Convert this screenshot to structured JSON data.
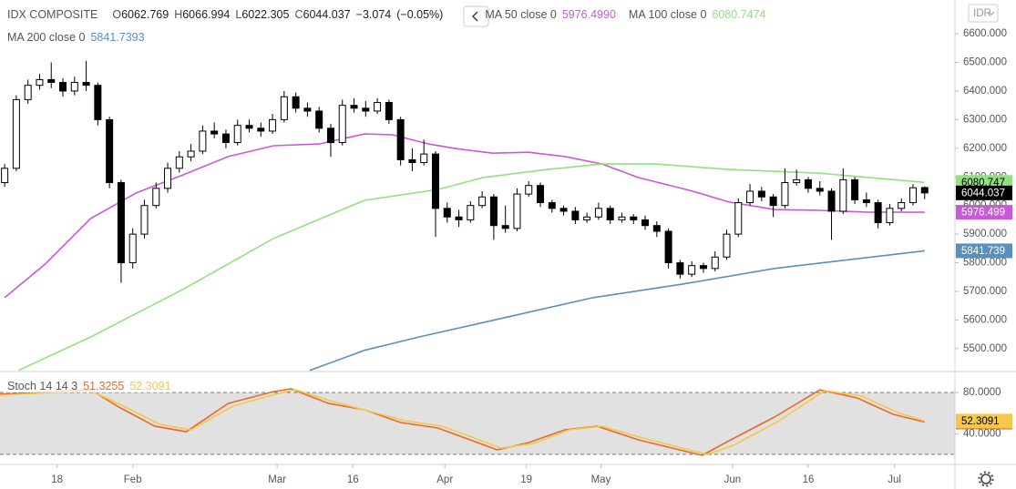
{
  "chart_data": [
    {
      "type": "candlestick",
      "title": "IDX COMPOSITE",
      "currency": "IDR",
      "ohlc_labels": [
        "O",
        "H",
        "L",
        "C"
      ],
      "change": "−3.074",
      "change_pct": "(−0.05%)",
      "up_color": "#ffffff",
      "down_color": "#000000",
      "open": [
        6080,
        6130,
        6370,
        6420,
        6440,
        6430,
        6400,
        6430,
        6420,
        6300,
        6080,
        5800,
        5900,
        6000,
        6060,
        6130,
        6170,
        6190,
        6260,
        6250,
        6220,
        6280,
        6270,
        6260,
        6300,
        6380,
        6340,
        6330,
        6270,
        6220,
        6350,
        6340,
        6330,
        6360,
        6300,
        6160,
        6150,
        6180,
        5990,
        5960,
        5950,
        6000,
        6030,
        5930,
        5920,
        6040,
        6070,
        6010,
        5990,
        5980,
        5950,
        5960,
        5990,
        5950,
        5960,
        5950,
        5930,
        5910,
        5800,
        5760,
        5790,
        5780,
        5820,
        5900,
        6010,
        6050,
        6030,
        6000,
        6080,
        6090,
        6060,
        6050,
        5980,
        6090,
        6020,
        6010,
        5940,
        5990,
        6010,
        6062.769
      ],
      "high": [
        6145,
        6385,
        6440,
        6460,
        6500,
        6445,
        6450,
        6505,
        6430,
        6310,
        6090,
        5920,
        6020,
        6080,
        6150,
        6190,
        6215,
        6280,
        6290,
        6265,
        6300,
        6300,
        6290,
        6320,
        6400,
        6395,
        6360,
        6345,
        6285,
        6370,
        6375,
        6365,
        6375,
        6370,
        6310,
        6200,
        6230,
        6190,
        6010,
        5985,
        6015,
        6050,
        6040,
        6000,
        6060,
        6085,
        6080,
        6020,
        6000,
        5995,
        5975,
        6010,
        6000,
        5975,
        5970,
        5965,
        5945,
        5920,
        5810,
        5805,
        5800,
        5840,
        5915,
        6025,
        6075,
        6065,
        6040,
        6130,
        6125,
        6100,
        6085,
        6060,
        6130,
        6100,
        6045,
        6020,
        6005,
        6025,
        6075,
        6066.994
      ],
      "low": [
        6065,
        6120,
        6355,
        6405,
        6410,
        6380,
        6385,
        6400,
        6280,
        6060,
        5730,
        5780,
        5885,
        5990,
        6045,
        6115,
        6155,
        6180,
        6235,
        6200,
        6210,
        6255,
        6240,
        6250,
        6290,
        6325,
        6310,
        6255,
        6170,
        6210,
        6325,
        6310,
        6320,
        6285,
        6140,
        6120,
        6140,
        5890,
        5940,
        5925,
        5940,
        5990,
        5880,
        5905,
        5910,
        6030,
        5995,
        5975,
        5965,
        5935,
        5940,
        5950,
        5935,
        5940,
        5935,
        5915,
        5890,
        5780,
        5745,
        5750,
        5765,
        5770,
        5810,
        5890,
        6000,
        6015,
        5960,
        5990,
        6070,
        6045,
        6035,
        5880,
        5970,
        6005,
        5995,
        5920,
        5930,
        5980,
        6000,
        6022.305
      ],
      "close": [
        6130,
        6370,
        6420,
        6440,
        6430,
        6400,
        6430,
        6420,
        6300,
        6080,
        5800,
        5900,
        6000,
        6060,
        6130,
        6170,
        6190,
        6260,
        6250,
        6220,
        6280,
        6270,
        6260,
        6300,
        6380,
        6340,
        6330,
        6270,
        6220,
        6350,
        6340,
        6330,
        6360,
        6300,
        6160,
        6150,
        6180,
        5990,
        5960,
        5950,
        6000,
        6030,
        5930,
        5920,
        6040,
        6070,
        6010,
        5990,
        5980,
        5950,
        5960,
        5990,
        5950,
        5960,
        5950,
        5930,
        5910,
        5800,
        5760,
        5790,
        5780,
        5820,
        5900,
        6010,
        6050,
        6030,
        6000,
        6080,
        6090,
        6060,
        6050,
        5980,
        6090,
        6020,
        6010,
        5940,
        5990,
        6010,
        6062,
        6044.037
      ],
      "ylim": [
        5420,
        6718
      ],
      "yticks": [
        {
          "value": 5500,
          "label": "5500.000"
        },
        {
          "value": 5600,
          "label": "5600.000"
        },
        {
          "value": 5700,
          "label": "5700.000"
        },
        {
          "value": 5800,
          "label": "5800.000"
        },
        {
          "value": 5900,
          "label": "5900.000"
        },
        {
          "value": 6000,
          "label": "6000.000"
        },
        {
          "value": 6100,
          "label": "6100.000"
        },
        {
          "value": 6200,
          "label": "6200.000"
        },
        {
          "value": 6300,
          "label": "6300.000"
        },
        {
          "value": 6400,
          "label": "6400.000"
        },
        {
          "value": 6500,
          "label": "6500.000"
        },
        {
          "value": 6600,
          "label": "6600.000"
        }
      ],
      "xlim": [
        -0.4,
        81.6
      ],
      "xticks": [
        {
          "value": 4.5,
          "label": "18"
        },
        {
          "value": 11,
          "label": "Feb"
        },
        {
          "value": 23.4,
          "label": "Mar"
        },
        {
          "value": 29.9,
          "label": "16"
        },
        {
          "value": 37.8,
          "label": "Apr"
        },
        {
          "value": 44.8,
          "label": "19"
        },
        {
          "value": 51.2,
          "label": "May"
        },
        {
          "value": 62.5,
          "label": "Jun"
        },
        {
          "value": 69,
          "label": "16"
        },
        {
          "value": 76.4,
          "label": "Jul"
        }
      ],
      "overlays": [
        {
          "name": "MA 50 close 0",
          "color": "#c75ad6",
          "legend_label": "5976.4990",
          "axis_label": "5976.499",
          "x": [
            0,
            3.5,
            7.4,
            11.3,
            15.3,
            19.2,
            23.1,
            27,
            30.9,
            33.3,
            36.4,
            38.7,
            41.9,
            45,
            48.1,
            51.3,
            54.4,
            59.1,
            62.2,
            66.1,
            70,
            74,
            79
          ],
          "values": [
            5678,
            5796,
            5955,
            6044,
            6107,
            6171,
            6209,
            6215,
            6250,
            6247,
            6215,
            6199,
            6183,
            6186,
            6171,
            6145,
            6098,
            6050,
            6012,
            5986,
            5983,
            5977,
            5976.499
          ]
        },
        {
          "name": "MA 100 close 0",
          "color": "#93e07e",
          "legend_label": "6080.7474",
          "axis_label": "6080.747",
          "x": [
            1.2,
            7.4,
            15.3,
            23.1,
            30.9,
            37.2,
            41.1,
            46.6,
            51.3,
            55.9,
            62.2,
            70,
            79
          ],
          "values": [
            5424,
            5541,
            5707,
            5885,
            6018,
            6056,
            6098,
            6126,
            6145,
            6145,
            6126,
            6113,
            6080.7474
          ]
        },
        {
          "name": "MA 200 close 0",
          "color": "#5b8fbc",
          "legend_label": "5841.7393",
          "axis_label": "5841.739",
          "x": [
            26.2,
            30.9,
            35.6,
            42.6,
            50.5,
            58.3,
            66.1,
            74,
            79
          ],
          "values": [
            5424,
            5494,
            5541,
            5605,
            5678,
            5726,
            5780,
            5818,
            5841.7393
          ]
        }
      ]
    },
    {
      "type": "line",
      "title": "Stoch 14 14 3",
      "ylim": [
        10.3,
        100.3
      ],
      "yticks": [
        {
          "value": 80,
          "label": "80.0000"
        },
        {
          "value": 40,
          "label": "40.0000"
        }
      ],
      "bands": [
        20,
        80
      ],
      "band_color": "#e1e1e1",
      "xlim": [
        -0.4,
        81.6
      ],
      "series": [
        {
          "color": "#e86a2c",
          "x": [
            -0.4,
            4.3,
            7.4,
            9.8,
            12.9,
            15.6,
            19.2,
            23.1,
            24.6,
            27.8,
            30.9,
            34,
            37.2,
            42.3,
            45,
            48.1,
            50.9,
            54.4,
            59.9,
            62.2,
            66.1,
            70,
            73.2,
            76.3,
            79
          ],
          "values": [
            78.2,
            80.9,
            82.6,
            65.9,
            47.3,
            42,
            69.4,
            80.9,
            83.5,
            69.4,
            63.2,
            50.9,
            45.6,
            24.4,
            31.5,
            43.8,
            47.3,
            34.1,
            19.1,
            33.2,
            56.2,
            82.6,
            74.7,
            58.8,
            51.3255
          ]
        },
        {
          "color": "#f2c94c",
          "x": [
            -0.4,
            7.4,
            10.2,
            13.3,
            16,
            19.6,
            23.5,
            25,
            28.2,
            34.4,
            37.6,
            42.6,
            45.4,
            48.5,
            51.3,
            54.8,
            60.3,
            62.6,
            66.5,
            70.4,
            73.6,
            76.7,
            79
          ],
          "values": [
            77.4,
            81.8,
            66.8,
            49.1,
            43.8,
            66.8,
            79.1,
            82.6,
            71.2,
            52.6,
            47.3,
            26.2,
            30.6,
            43.8,
            47.3,
            35.9,
            20,
            28.8,
            52.6,
            81.8,
            76.5,
            60.6,
            52.3091
          ]
        }
      ]
    }
  ]
}
